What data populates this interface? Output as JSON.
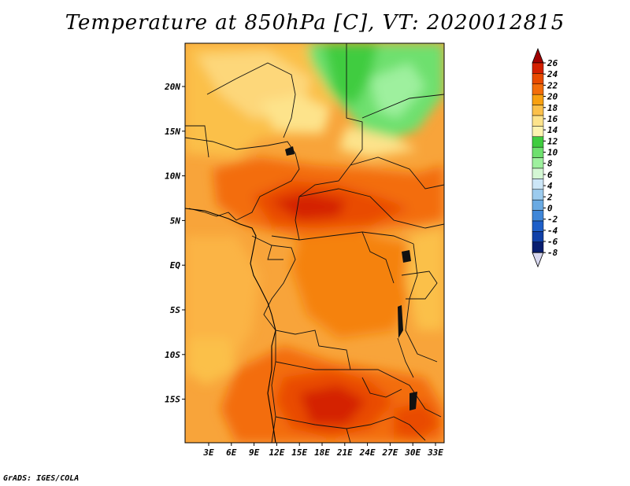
{
  "title": "Temperature at 850hPa [C], VT: 2020012815",
  "credit": "GrADS: IGES/COLA",
  "map": {
    "lat_ticks": [
      "20N",
      "15N",
      "10N",
      "5N",
      "EQ",
      "5S",
      "10S",
      "15S"
    ],
    "lon_ticks": [
      "3E",
      "6E",
      "9E",
      "12E",
      "15E",
      "18E",
      "21E",
      "24E",
      "27E",
      "30E",
      "33E"
    ]
  },
  "colorbar": {
    "labels": [
      "26",
      "24",
      "22",
      "20",
      "18",
      "16",
      "14",
      "12",
      "10",
      "8",
      "6",
      "4",
      "2",
      "0",
      "-2",
      "-4",
      "-6",
      "-8"
    ],
    "colors": [
      "#a00000",
      "#d42000",
      "#e94b00",
      "#f36d0a",
      "#f8a010",
      "#fbc04a",
      "#fde38b",
      "#fdf3b0",
      "#3fcc3f",
      "#6ee06e",
      "#9ef09e",
      "#d4f7d4",
      "#cce6f7",
      "#9ccbee",
      "#6aaae3",
      "#3f86d8",
      "#1e5fc8",
      "#1040a8",
      "#081e70",
      "#d8d8f0"
    ]
  }
}
